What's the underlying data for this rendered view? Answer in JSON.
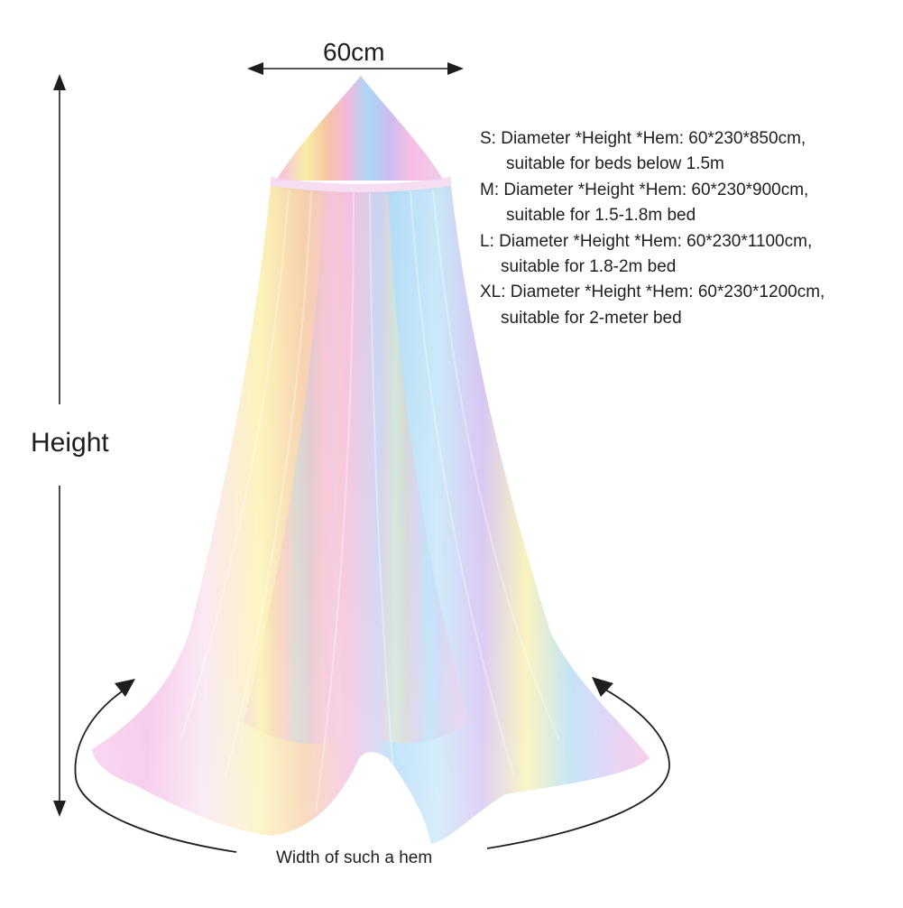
{
  "dimensions": {
    "width_label": "60cm",
    "height_label": "Height",
    "hem_label": "Width of such a hem"
  },
  "sizes": [
    {
      "line1": "S: Diameter *Height *Hem: 60*230*850cm,",
      "line2": "suitable for beds below 1.5m"
    },
    {
      "line1": "M: Diameter *Height *Hem: 60*230*900cm,",
      "line2": "suitable for 1.5-1.8m bed"
    },
    {
      "line1": "L: Diameter *Height *Hem: 60*230*1100cm,",
      "line2": "suitable for 1.8-2m bed"
    },
    {
      "line1": "XL: Diameter *Height *Hem: 60*230*1200cm,",
      "line2": "suitable for 2-meter bed"
    }
  ],
  "colors": {
    "background": "#ffffff",
    "text": "#1e1e1e",
    "stripes": [
      "#f2b8e6",
      "#f7d6ee",
      "#fbf0a8",
      "#f6c9a2",
      "#a9d8f5",
      "#c7b7ef",
      "#f3b4d9"
    ]
  },
  "icons": [
    "double-arrow-icon",
    "curved-arrow-icon"
  ]
}
